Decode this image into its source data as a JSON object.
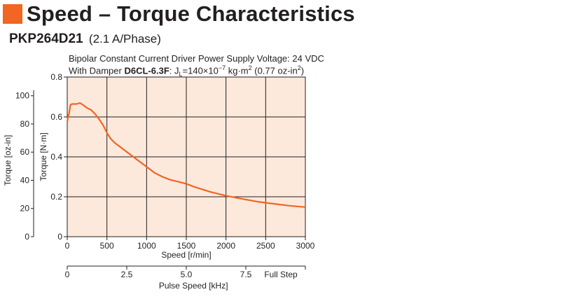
{
  "colors": {
    "accent": "#f26522",
    "plot_bg": "#fde9dc",
    "curve": "#f26522",
    "grid": "#231f20"
  },
  "header": {
    "title": "Speed – Torque Characteristics",
    "model": "PKP264D21",
    "model_spec": "(2.1 A/Phase)"
  },
  "conditions": {
    "line1": "Bipolar Constant Current Driver  Power Supply Voltage: 24 VDC",
    "line2_prefix": "With Damper ",
    "damper_model": "D6CL-6.3F",
    "line2_inertia": ": J",
    "line2_sub": "L",
    "line2_value": "=140×10",
    "line2_exp": "−7",
    "line2_unit": " kg·m",
    "line2_unit_exp": "2",
    "line2_oz": " (0.77 oz-in",
    "line2_oz_exp": "2",
    "line2_end": ")"
  },
  "chart_data": {
    "type": "line",
    "xlabel": "Speed [r/min]",
    "ylabel": "Torque [N·m]",
    "ylabel2": "Torque [oz-in]",
    "x2label": "Pulse Speed [kHz]",
    "xlim": [
      0,
      3000
    ],
    "ylim": [
      0,
      0.8
    ],
    "y2lim": [
      0,
      113.29
    ],
    "xticks": [
      0,
      500,
      1000,
      1500,
      2000,
      2500,
      3000
    ],
    "yticks": [
      0,
      0.2,
      0.4,
      0.6,
      0.8
    ],
    "y2ticks": [
      0,
      20,
      40,
      60,
      80,
      100
    ],
    "x2ticks": [
      {
        "label": "0",
        "value": 0
      },
      {
        "label": "2.5",
        "value": 2.5
      },
      {
        "label": "5.0",
        "value": 5.0
      },
      {
        "label": "7.5",
        "value": 7.5
      },
      {
        "label": "Full Step",
        "value": 10.0
      }
    ],
    "x2lim": [
      0,
      10.0
    ],
    "x2_label_pos": 2.0,
    "grid": true,
    "series": [
      {
        "x": [
          0,
          10,
          25,
          40,
          60,
          80,
          120,
          160,
          200,
          250,
          300,
          350,
          400,
          450,
          500,
          550,
          600,
          700,
          800,
          900,
          1000,
          1100,
          1200,
          1300,
          1400,
          1500,
          1600,
          1800,
          2000,
          2200,
          2400,
          2600,
          2800,
          3000
        ],
        "y": [
          0.575,
          0.6,
          0.62,
          0.66,
          0.665,
          0.665,
          0.665,
          0.67,
          0.66,
          0.645,
          0.635,
          0.615,
          0.59,
          0.56,
          0.52,
          0.49,
          0.47,
          0.44,
          0.41,
          0.38,
          0.35,
          0.32,
          0.3,
          0.285,
          0.275,
          0.265,
          0.25,
          0.225,
          0.205,
          0.19,
          0.175,
          0.165,
          0.155,
          0.148
        ]
      }
    ]
  }
}
